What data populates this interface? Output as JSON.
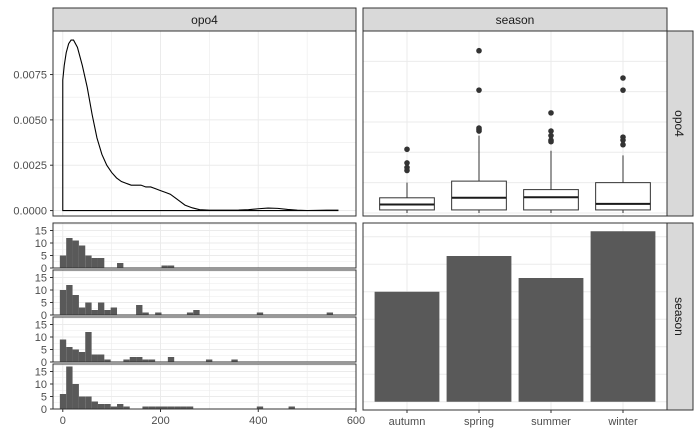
{
  "chart_data": {
    "type": "pairs-plot",
    "variables": [
      "opo4",
      "season"
    ],
    "strips": {
      "top": [
        "opo4",
        "season"
      ],
      "right": [
        "opo4",
        "season"
      ]
    },
    "colors": {
      "panel_border": "#333333",
      "strip_fill": "#d9d9d9",
      "grid": "#ebebeb",
      "bar_fill": "#595959",
      "box_fill": "#ffffff",
      "outlier": "#333333"
    },
    "density": {
      "var": "opo4",
      "xlim": [
        -20,
        600
      ],
      "ylim": [
        -0.0003,
        0.0099
      ],
      "yticks": [
        0.0,
        0.0025,
        0.005,
        0.0075
      ],
      "ytick_labels": [
        "0.0000",
        "0.0025",
        "0.0050",
        "0.0075"
      ],
      "points": [
        [
          0,
          0.0072
        ],
        [
          3,
          0.008
        ],
        [
          7,
          0.0087
        ],
        [
          12,
          0.0092
        ],
        [
          17,
          0.0094
        ],
        [
          22,
          0.0094
        ],
        [
          30,
          0.009
        ],
        [
          40,
          0.008
        ],
        [
          50,
          0.0068
        ],
        [
          60,
          0.0053
        ],
        [
          70,
          0.004
        ],
        [
          80,
          0.0031
        ],
        [
          90,
          0.0025
        ],
        [
          100,
          0.0021
        ],
        [
          110,
          0.0018
        ],
        [
          120,
          0.0016
        ],
        [
          130,
          0.0015
        ],
        [
          140,
          0.0014
        ],
        [
          150,
          0.0014
        ],
        [
          160,
          0.0014
        ],
        [
          170,
          0.0013
        ],
        [
          180,
          0.0013
        ],
        [
          190,
          0.0012
        ],
        [
          200,
          0.0011
        ],
        [
          210,
          0.001
        ],
        [
          220,
          0.0009
        ],
        [
          230,
          0.0007
        ],
        [
          240,
          0.0005
        ],
        [
          250,
          0.0003
        ],
        [
          265,
          0.00015
        ],
        [
          280,
          5e-05
        ],
        [
          300,
          2e-05
        ],
        [
          330,
          2e-05
        ],
        [
          360,
          3e-05
        ],
        [
          380,
          5e-05
        ],
        [
          400,
          0.0001
        ],
        [
          420,
          0.00014
        ],
        [
          440,
          0.00012
        ],
        [
          460,
          6e-05
        ],
        [
          480,
          2e-05
        ],
        [
          500,
          0.0
        ],
        [
          540,
          2e-05
        ],
        [
          563,
          2e-05
        ]
      ]
    },
    "boxplot": {
      "x_var": "season",
      "y_var": "opo4",
      "categories": [
        "autumn",
        "spring",
        "summer",
        "winter"
      ],
      "ylim": [
        -10,
        600
      ],
      "boxes": [
        {
          "q1": 10,
          "median": 28,
          "q3": 50,
          "low": 0,
          "high": 100,
          "outliers": [
            150,
            140,
            165,
            210
          ]
        },
        {
          "q1": 10,
          "median": 50,
          "q3": 105,
          "low": 0,
          "high": 255,
          "outliers": [
            535,
            405,
            270,
            275,
            280
          ]
        },
        {
          "q1": 10,
          "median": 52,
          "q3": 77,
          "low": 0,
          "high": 205,
          "outliers": [
            330,
            255,
            270,
            235,
            240
          ]
        },
        {
          "q1": 10,
          "median": 30,
          "q3": 100,
          "low": 0,
          "high": 190,
          "outliers": [
            445,
            405,
            250,
            240,
            225
          ]
        }
      ]
    },
    "facet_histograms": {
      "x_var": "opo4",
      "facet_var": "season",
      "binwidth": 13,
      "xlim": [
        -20,
        600
      ],
      "xticks": [
        0,
        200,
        400,
        600
      ],
      "xtick_labels": [
        "0",
        "200",
        "400",
        "600"
      ],
      "ylim": [
        0,
        18
      ],
      "yticks": [
        0,
        5,
        10,
        15
      ],
      "ytick_labels": [
        "0",
        "5",
        "10",
        "15"
      ],
      "panels": [
        {
          "season": "autumn",
          "counts": {
            "-6": 5,
            "7": 12,
            "20": 11,
            "33": 9,
            "46": 5,
            "59": 4,
            "72": 4,
            "111": 2,
            "202": 1,
            "215": 1
          }
        },
        {
          "season": "spring",
          "counts": {
            "-6": 10,
            "7": 12,
            "20": 8,
            "33": 3,
            "46": 5,
            "59": 2,
            "72": 5,
            "85": 2,
            "98": 3,
            "150": 4,
            "163": 1,
            "189": 1,
            "254": 1,
            "267": 2,
            "397": 1,
            "540": 1
          }
        },
        {
          "season": "summer",
          "counts": {
            "-6": 9,
            "7": 6,
            "20": 5,
            "33": 4,
            "46": 12,
            "59": 3,
            "72": 3,
            "85": 1,
            "124": 1,
            "137": 2,
            "150": 2,
            "163": 1,
            "176": 1,
            "215": 2,
            "293": 1,
            "345": 1
          }
        },
        {
          "season": "winter",
          "counts": {
            "-6": 6,
            "7": 17,
            "20": 10,
            "33": 5,
            "46": 5,
            "59": 3,
            "72": 2,
            "85": 2,
            "98": 1,
            "111": 2,
            "124": 1,
            "163": 1,
            "176": 1,
            "189": 1,
            "202": 1,
            "215": 1,
            "228": 1,
            "241": 1,
            "254": 1,
            "397": 1,
            "462": 1
          }
        }
      ]
    },
    "bar": {
      "var": "season",
      "categories": [
        "autumn",
        "spring",
        "summer",
        "winter"
      ],
      "values": [
        40,
        53,
        45,
        62
      ],
      "ylim": [
        -3,
        65
      ],
      "xtick_labels": [
        "autumn",
        "spring",
        "summer",
        "winter"
      ]
    }
  }
}
